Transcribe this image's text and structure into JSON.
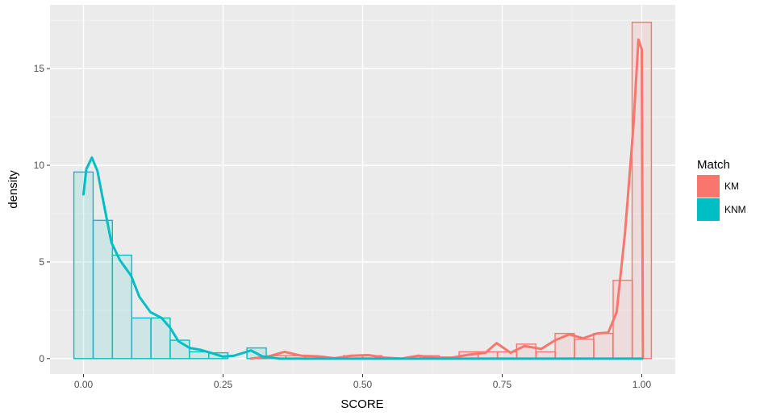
{
  "chart_data": {
    "type": "histogram+density",
    "xlabel": "SCORE",
    "ylabel": "density",
    "xlim": [
      -0.06,
      1.06
    ],
    "ylim": [
      -0.8,
      18.3
    ],
    "x_ticks": [
      {
        "value": 0.0,
        "label": "0.00"
      },
      {
        "value": 0.25,
        "label": "0.25"
      },
      {
        "value": 0.5,
        "label": "0.50"
      },
      {
        "value": 0.75,
        "label": "0.75"
      },
      {
        "value": 1.0,
        "label": "1.00"
      }
    ],
    "y_ticks": [
      {
        "value": 0,
        "label": "0"
      },
      {
        "value": 5,
        "label": "5"
      },
      {
        "value": 10,
        "label": "10"
      },
      {
        "value": 15,
        "label": "15"
      }
    ],
    "x_minor": [
      0.125,
      0.375,
      0.625,
      0.875
    ],
    "y_minor": [
      2.5,
      7.5,
      12.5,
      17.5
    ],
    "grid": true,
    "bin_width": 0.0345,
    "legend": {
      "title": "Match",
      "position": "right",
      "entries": [
        {
          "label": "KM",
          "color": "#F8766D"
        },
        {
          "label": "KNM",
          "color": "#00BFC4"
        }
      ]
    },
    "series": [
      {
        "name": "KM",
        "color": "#F8766D",
        "bins": [
          {
            "x": 0.345,
            "y": 0.15
          },
          {
            "x": 0.38,
            "y": 0.15
          },
          {
            "x": 0.414,
            "y": 0.12
          },
          {
            "x": 0.483,
            "y": 0.15
          },
          {
            "x": 0.517,
            "y": 0.15
          },
          {
            "x": 0.62,
            "y": 0.15
          },
          {
            "x": 0.69,
            "y": 0.35
          },
          {
            "x": 0.724,
            "y": 0.35
          },
          {
            "x": 0.759,
            "y": 0.35
          },
          {
            "x": 0.793,
            "y": 0.75
          },
          {
            "x": 0.828,
            "y": 0.35
          },
          {
            "x": 0.862,
            "y": 1.3
          },
          {
            "x": 0.897,
            "y": 1.0
          },
          {
            "x": 0.931,
            "y": 1.3
          },
          {
            "x": 0.966,
            "y": 4.05
          },
          {
            "x": 1.0,
            "y": 17.4
          }
        ],
        "density": [
          [
            0.3,
            0.0
          ],
          [
            0.33,
            0.1
          ],
          [
            0.36,
            0.35
          ],
          [
            0.39,
            0.15
          ],
          [
            0.42,
            0.12
          ],
          [
            0.45,
            0.02
          ],
          [
            0.48,
            0.15
          ],
          [
            0.51,
            0.18
          ],
          [
            0.54,
            0.05
          ],
          [
            0.57,
            0.0
          ],
          [
            0.6,
            0.15
          ],
          [
            0.63,
            0.05
          ],
          [
            0.66,
            0.05
          ],
          [
            0.69,
            0.2
          ],
          [
            0.72,
            0.3
          ],
          [
            0.74,
            0.8
          ],
          [
            0.765,
            0.3
          ],
          [
            0.79,
            0.65
          ],
          [
            0.82,
            0.5
          ],
          [
            0.845,
            0.95
          ],
          [
            0.87,
            1.25
          ],
          [
            0.895,
            1.05
          ],
          [
            0.92,
            1.3
          ],
          [
            0.94,
            1.35
          ],
          [
            0.955,
            2.4
          ],
          [
            0.97,
            6.5
          ],
          [
            0.985,
            12.0
          ],
          [
            0.994,
            16.5
          ],
          [
            1.0,
            16.0
          ],
          [
            1.002,
            0.0
          ]
        ]
      },
      {
        "name": "KNM",
        "color": "#00BFC4",
        "bins": [
          {
            "x": 0.0,
            "y": 9.65
          },
          {
            "x": 0.0345,
            "y": 7.15
          },
          {
            "x": 0.069,
            "y": 5.35
          },
          {
            "x": 0.1035,
            "y": 2.1
          },
          {
            "x": 0.138,
            "y": 2.1
          },
          {
            "x": 0.1725,
            "y": 0.95
          },
          {
            "x": 0.207,
            "y": 0.35
          },
          {
            "x": 0.2415,
            "y": 0.3
          },
          {
            "x": 0.31,
            "y": 0.55
          }
        ],
        "density": [
          [
            0.0,
            8.5
          ],
          [
            0.005,
            9.8
          ],
          [
            0.015,
            10.4
          ],
          [
            0.025,
            9.7
          ],
          [
            0.035,
            8.2
          ],
          [
            0.05,
            6.0
          ],
          [
            0.065,
            5.1
          ],
          [
            0.085,
            4.3
          ],
          [
            0.1,
            3.2
          ],
          [
            0.12,
            2.4
          ],
          [
            0.14,
            2.1
          ],
          [
            0.155,
            1.6
          ],
          [
            0.17,
            0.9
          ],
          [
            0.19,
            0.55
          ],
          [
            0.21,
            0.45
          ],
          [
            0.23,
            0.28
          ],
          [
            0.25,
            0.1
          ],
          [
            0.27,
            0.15
          ],
          [
            0.3,
            0.42
          ],
          [
            0.32,
            0.12
          ],
          [
            0.35,
            0.0
          ],
          [
            0.4,
            0.0
          ],
          [
            1.0,
            0.0
          ]
        ]
      }
    ]
  }
}
